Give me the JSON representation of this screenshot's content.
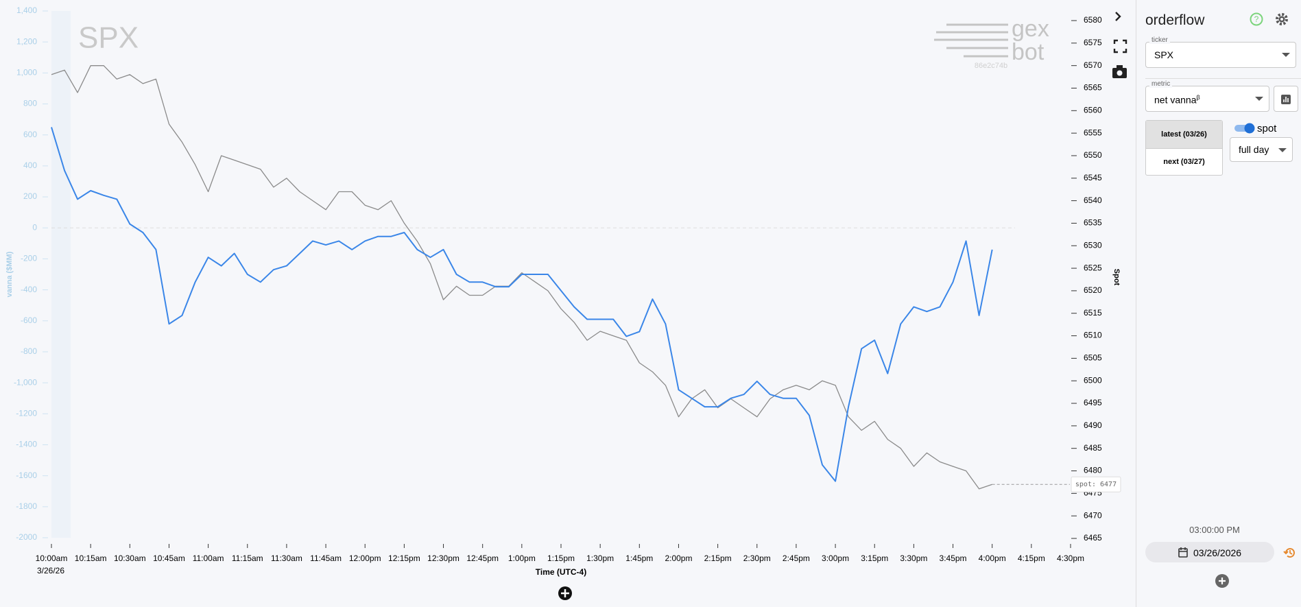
{
  "chart_data": {
    "type": "line",
    "x": [
      "10:00am",
      "10:05am",
      "10:10am",
      "10:15am",
      "10:20am",
      "10:25am",
      "10:30am",
      "10:35am",
      "10:40am",
      "10:45am",
      "10:50am",
      "10:55am",
      "11:00am",
      "11:05am",
      "11:10am",
      "11:15am",
      "11:20am",
      "11:25am",
      "11:30am",
      "11:35am",
      "11:40am",
      "11:45am",
      "11:50am",
      "11:55am",
      "12:00pm",
      "12:05pm",
      "12:10pm",
      "12:15pm",
      "12:20pm",
      "12:25pm",
      "12:30pm",
      "12:35pm",
      "12:40pm",
      "12:45pm",
      "12:50pm",
      "12:55pm",
      "1:00pm",
      "1:05pm",
      "1:10pm",
      "1:15pm",
      "1:20pm",
      "1:25pm",
      "1:30pm",
      "1:35pm",
      "1:40pm",
      "1:45pm",
      "1:50pm",
      "1:55pm",
      "2:00pm",
      "2:05pm",
      "2:10pm",
      "2:15pm",
      "2:20pm",
      "2:25pm",
      "2:30pm",
      "2:35pm",
      "2:40pm",
      "2:45pm",
      "2:50pm",
      "2:55pm",
      "3:00pm",
      "3:05pm",
      "3:10pm",
      "3:15pm",
      "3:20pm",
      "3:25pm",
      "3:30pm",
      "3:35pm",
      "3:40pm",
      "3:45pm",
      "3:50pm",
      "3:55pm",
      "4:00pm"
    ],
    "series": [
      {
        "color": "#3a86e8",
        "values": [
          650,
          370,
          185,
          240,
          210,
          185,
          25,
          -30,
          -140,
          -620,
          -565,
          -350,
          -190,
          -245,
          -165,
          -300,
          -350,
          -270,
          -245,
          -165,
          -85,
          -110,
          -85,
          -140,
          -85,
          -55,
          -55,
          -30,
          -140,
          -190,
          -140,
          -300,
          -350,
          -350,
          -380,
          -380,
          -300,
          -300,
          -300,
          -405,
          -510,
          -590,
          -590,
          -590,
          -700,
          -670,
          -460,
          -620,
          -1045,
          -1100,
          -1155,
          -1155,
          -1100,
          -1075,
          -990,
          -1075,
          -1100,
          -1100,
          -1210,
          -1530,
          -1635,
          -1155,
          -780,
          -725,
          -940,
          -620,
          -510,
          -540,
          -510,
          -350,
          -85,
          -565,
          -140
        ]
      },
      {
        "color": "#8a8a8a",
        "axis": "y2",
        "values": [
          6568,
          6569,
          6564,
          6570,
          6570,
          6567,
          6568,
          6566,
          6567,
          6557,
          6553,
          6548,
          6542,
          6550,
          6549,
          6548,
          6547,
          6543,
          6545,
          6542,
          6540,
          6538,
          6542,
          6542,
          6539,
          6538,
          6540,
          6535,
          6531,
          6526,
          6518,
          6521,
          6519,
          6519,
          6521,
          6521,
          6524,
          6522,
          6520,
          6516,
          6513,
          6509,
          6511,
          6510,
          6509,
          6504,
          6502,
          6499,
          6492,
          6496,
          6498,
          6494,
          6496,
          6494,
          6492,
          6496,
          6498,
          6499,
          6498,
          6500,
          6499,
          6492,
          6489,
          6491,
          6487,
          6485,
          6481,
          6484,
          6482,
          6481,
          6480,
          6476,
          6477
        ]
      }
    ],
    "xlim": [
      "10:00am",
      "4:30pm"
    ],
    "xticks": [
      "10:00am",
      "10:15am",
      "10:30am",
      "10:45am",
      "11:00am",
      "11:15am",
      "11:30am",
      "11:45am",
      "12:00pm",
      "12:15pm",
      "12:30pm",
      "12:45pm",
      "1:00pm",
      "1:15pm",
      "1:30pm",
      "1:45pm",
      "2:00pm",
      "2:15pm",
      "2:30pm",
      "2:45pm",
      "3:00pm",
      "3:15pm",
      "3:30pm",
      "3:45pm",
      "4:00pm",
      "4:15pm",
      "4:30pm"
    ],
    "date_label": "3/26/26",
    "ylim": [
      -2000,
      1400
    ],
    "yticks": [
      -2000,
      -1800,
      -1600,
      -1400,
      -1200,
      {
        "value": -1000,
        "label": "-1,000"
      },
      -800,
      -600,
      -400,
      -200,
      0,
      200,
      400,
      600,
      800,
      {
        "value": 1000,
        "label": "1,000"
      },
      {
        "value": 1200,
        "label": "1,200"
      },
      {
        "value": 1400,
        "label": "1,400"
      }
    ],
    "y2lim": [
      6465,
      6580
    ],
    "y2ticks": [
      6465,
      6470,
      6475,
      6480,
      6485,
      6490,
      6495,
      6500,
      6505,
      6510,
      6515,
      6520,
      6525,
      6530,
      6535,
      6540,
      6545,
      6550,
      6555,
      6560,
      6565,
      6570,
      6575,
      6580
    ],
    "xlabel": "Time (UTC-4)",
    "ylabel": "vanna ($MM)",
    "y2label": "Spot",
    "annotation": "spot: 6477"
  },
  "watermark": {
    "ticker": "SPX",
    "brand_1": "gex",
    "brand_2": "bot",
    "id": "86e2c74b"
  },
  "sidebar": {
    "title": "orderflow",
    "ticker_label": "ticker",
    "ticker": "SPX",
    "metric_label": "metric",
    "metric": "net vanna",
    "metric_sup": "β",
    "tabs": [
      "latest (03/26)",
      "next (03/27)"
    ],
    "toggle_label": "spot",
    "range": "full day",
    "time": "03:00:00 PM",
    "date": "03/26/2026"
  }
}
